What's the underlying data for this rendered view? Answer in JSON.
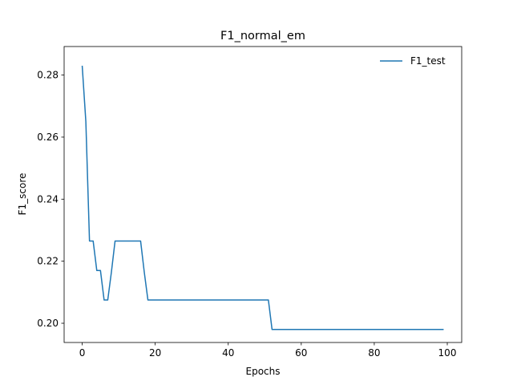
{
  "chart_data": {
    "type": "line",
    "title": "F1_normal_em",
    "xlabel": "Epochs",
    "ylabel": "F1_score",
    "xlim": [
      -4.95,
      103.95
    ],
    "ylim": [
      0.1938,
      0.2892
    ],
    "xticks": [
      0,
      20,
      40,
      60,
      80,
      100
    ],
    "yticks": [
      0.2,
      0.22,
      0.24,
      0.26,
      0.28
    ],
    "xtick_labels": [
      "0",
      "20",
      "40",
      "60",
      "80",
      "100"
    ],
    "ytick_labels": [
      "0.20",
      "0.22",
      "0.24",
      "0.26",
      "0.28"
    ],
    "grid": false,
    "legend_position": "top-right",
    "series": [
      {
        "name": "F1_test",
        "color": "#1f77b4",
        "points": [
          [
            0,
            0.283
          ],
          [
            1,
            0.265
          ],
          [
            2,
            0.2265
          ],
          [
            3,
            0.2265
          ],
          [
            4,
            0.217
          ],
          [
            5,
            0.217
          ],
          [
            6,
            0.2075
          ],
          [
            7,
            0.2075
          ],
          [
            8,
            0.2165
          ],
          [
            9,
            0.2265
          ],
          [
            16,
            0.2265
          ],
          [
            17,
            0.2165
          ],
          [
            18,
            0.2075
          ],
          [
            51,
            0.2075
          ],
          [
            52,
            0.198
          ],
          [
            99,
            0.198
          ]
        ]
      }
    ]
  }
}
